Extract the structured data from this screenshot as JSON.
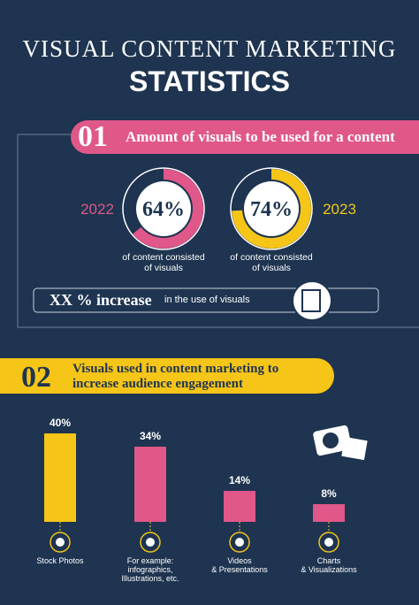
{
  "header": {
    "line1": "VISUAL CONTENT MARKETING",
    "line2": "STATISTICS"
  },
  "section1": {
    "number": "01",
    "title": "Amount of visuals to be used for a content",
    "donuts": [
      {
        "year": "2022",
        "value": 64,
        "value_label": "64%",
        "caption": "of content  consisted\nof visuals",
        "color": "#e0578a"
      },
      {
        "year": "2023",
        "value": 74,
        "value_label": "74%",
        "caption": "of content  consisted\nof visuals",
        "color": "#f5c518"
      }
    ],
    "increase": {
      "label": "XX % increase",
      "text": "in the use of visuals"
    }
  },
  "section2": {
    "number": "02",
    "title": "Visuals used in content marketing to\nincrease audience engagement"
  },
  "chart_data": {
    "type": "bar",
    "categories": [
      "Stock Photos",
      "For example:\ninfographics,\nIllustrations, etc.",
      "Videos\n& Presentations",
      "Charts\n& Visualizations"
    ],
    "values": [
      40,
      34,
      14,
      8
    ],
    "value_labels": [
      "40%",
      "34%",
      "14%",
      "8%"
    ],
    "colors": [
      "#f5c518",
      "#e0578a",
      "#e0578a",
      "#e0578a"
    ]
  }
}
